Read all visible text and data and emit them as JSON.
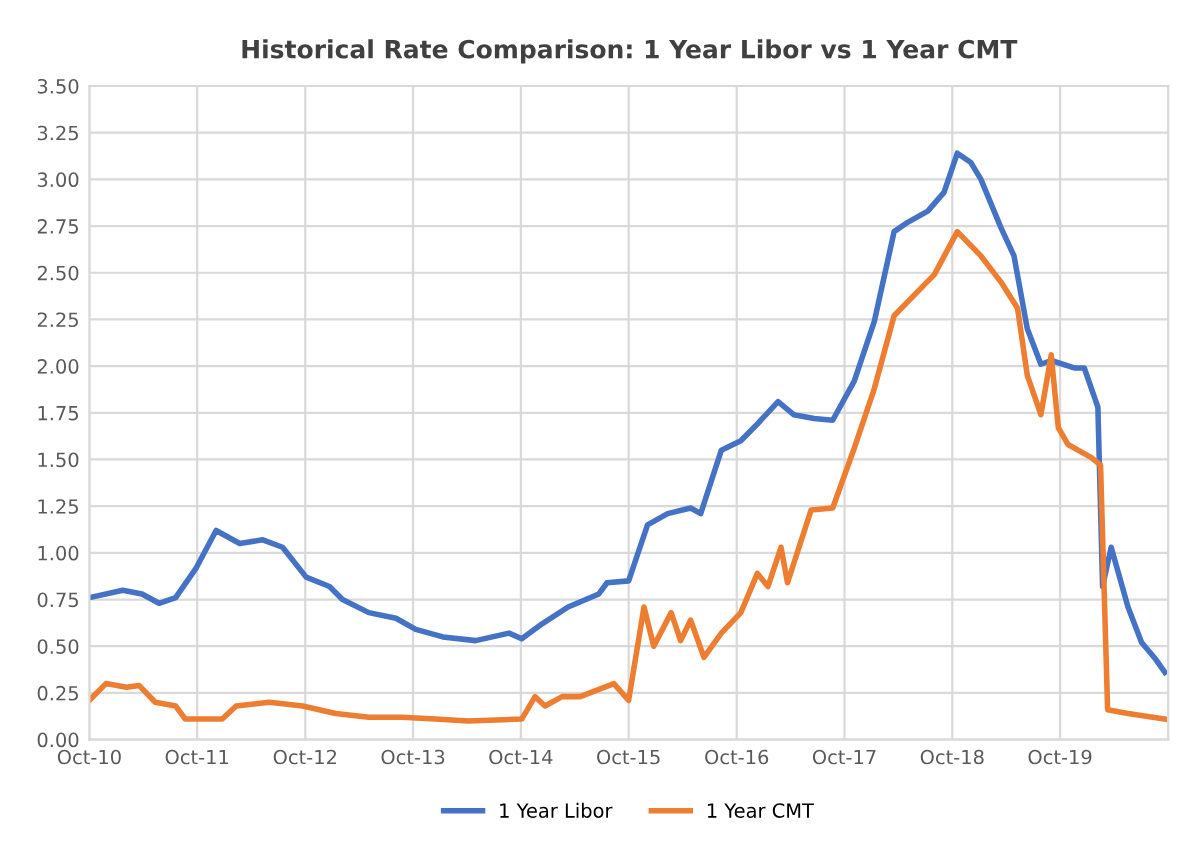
{
  "chart_data": {
    "type": "line",
    "title": "Historical Rate Comparison: 1 Year Libor vs 1 Year CMT",
    "xlim": [
      "2010-10-01",
      "2020-10-01"
    ],
    "xticks": [
      {
        "value": "2010-10-01",
        "label": "Oct-10"
      },
      {
        "value": "2011-10-01",
        "label": "Oct-11"
      },
      {
        "value": "2012-10-01",
        "label": "Oct-12"
      },
      {
        "value": "2013-10-01",
        "label": "Oct-13"
      },
      {
        "value": "2014-10-01",
        "label": "Oct-14"
      },
      {
        "value": "2015-10-01",
        "label": "Oct-15"
      },
      {
        "value": "2016-10-01",
        "label": "Oct-16"
      },
      {
        "value": "2017-10-01",
        "label": "Oct-17"
      },
      {
        "value": "2018-10-01",
        "label": "Oct-18"
      },
      {
        "value": "2019-10-01",
        "label": "Oct-19"
      }
    ],
    "ylim": [
      0,
      3.5
    ],
    "yticks": [
      {
        "value": 0,
        "label": "0.00"
      },
      {
        "value": 0.25,
        "label": "0.25"
      },
      {
        "value": 0.5,
        "label": "0.50"
      },
      {
        "value": 0.75,
        "label": "0.75"
      },
      {
        "value": 1,
        "label": "1.00"
      },
      {
        "value": 1.25,
        "label": "1.25"
      },
      {
        "value": 1.5,
        "label": "1.50"
      },
      {
        "value": 1.75,
        "label": "1.75"
      },
      {
        "value": 2,
        "label": "2.00"
      },
      {
        "value": 2.25,
        "label": "2.25"
      },
      {
        "value": 2.5,
        "label": "2.50"
      },
      {
        "value": 2.75,
        "label": "2.75"
      },
      {
        "value": 3,
        "label": "3.00"
      },
      {
        "value": 3.25,
        "label": "3.25"
      },
      {
        "value": 3.5,
        "label": "3.50"
      }
    ],
    "grid": true,
    "legend": "bottom",
    "marker": "none",
    "line_style": "solid",
    "series": [
      {
        "name": "1 Year Libor",
        "color": "#4472c4",
        "x": [
          "2010-10-01",
          "2011-01-22",
          "2011-03-28",
          "2011-05-25",
          "2011-07-20",
          "2011-09-28",
          "2011-12-04",
          "2012-02-22",
          "2012-05-10",
          "2012-07-16",
          "2012-10-04",
          "2012-12-22",
          "2013-02-04",
          "2013-05-04",
          "2013-08-04",
          "2013-10-10",
          "2014-01-10",
          "2014-05-01",
          "2014-08-22",
          "2014-10-04",
          "2014-12-12",
          "2015-03-10",
          "2015-06-22",
          "2015-07-20",
          "2015-10-01",
          "2015-12-04",
          "2016-02-10",
          "2016-04-28",
          "2016-06-01",
          "2016-08-10",
          "2016-10-15",
          "2016-12-10",
          "2017-02-18",
          "2017-04-12",
          "2017-06-20",
          "2017-08-22",
          "2017-11-03",
          "2018-01-10",
          "2018-03-18",
          "2018-05-03",
          "2018-07-10",
          "2018-09-03",
          "2018-10-18",
          "2018-12-03",
          "2019-01-06",
          "2019-03-15",
          "2019-04-28",
          "2019-06-12",
          "2019-07-28",
          "2019-09-01",
          "2019-11-18",
          "2019-12-22",
          "2020-02-06",
          "2020-02-22",
          "2020-03-22",
          "2020-05-18",
          "2020-07-03",
          "2020-08-15",
          "2020-09-20"
        ],
        "values": [
          0.76,
          0.8,
          0.78,
          0.73,
          0.76,
          0.92,
          1.12,
          1.05,
          1.07,
          1.03,
          0.87,
          0.82,
          0.75,
          0.68,
          0.65,
          0.59,
          0.55,
          0.53,
          0.57,
          0.54,
          0.62,
          0.71,
          0.78,
          0.84,
          0.85,
          1.15,
          1.21,
          1.24,
          1.21,
          1.55,
          1.6,
          1.69,
          1.81,
          1.74,
          1.72,
          1.71,
          1.92,
          2.24,
          2.72,
          2.77,
          2.83,
          2.93,
          3.14,
          3.09,
          3.0,
          2.74,
          2.59,
          2.2,
          2.01,
          2.03,
          1.99,
          1.99,
          1.78,
          0.82,
          1.03,
          0.71,
          0.52,
          0.44,
          0.36
        ]
      },
      {
        "name": "1 Year CMT",
        "color": "#ed7d31",
        "x": [
          "2010-10-01",
          "2010-11-26",
          "2011-02-04",
          "2011-03-18",
          "2011-05-12",
          "2011-07-20",
          "2011-08-22",
          "2011-12-25",
          "2012-02-10",
          "2012-06-01",
          "2012-09-22",
          "2013-01-12",
          "2013-05-04",
          "2013-08-25",
          "2013-12-16",
          "2014-04-06",
          "2014-10-04",
          "2014-11-18",
          "2014-12-22",
          "2015-02-18",
          "2015-04-20",
          "2015-08-12",
          "2015-10-01",
          "2015-11-22",
          "2015-12-25",
          "2016-02-22",
          "2016-03-25",
          "2016-04-28",
          "2016-06-12",
          "2016-08-10",
          "2016-10-15",
          "2016-12-10",
          "2017-01-15",
          "2017-02-28",
          "2017-03-22",
          "2017-06-10",
          "2017-08-22",
          "2017-11-03",
          "2018-01-10",
          "2018-03-18",
          "2018-05-25",
          "2018-08-01",
          "2018-10-18",
          "2019-01-06",
          "2019-03-15",
          "2019-05-10",
          "2019-06-12",
          "2019-07-28",
          "2019-09-01",
          "2019-09-25",
          "2019-10-28",
          "2020-01-15",
          "2020-02-15",
          "2020-03-10",
          "2020-05-18",
          "2020-09-20"
        ],
        "values": [
          0.21,
          0.3,
          0.28,
          0.29,
          0.2,
          0.18,
          0.11,
          0.11,
          0.18,
          0.2,
          0.18,
          0.14,
          0.12,
          0.12,
          0.11,
          0.1,
          0.11,
          0.23,
          0.18,
          0.23,
          0.23,
          0.3,
          0.21,
          0.71,
          0.5,
          0.68,
          0.53,
          0.64,
          0.44,
          0.57,
          0.68,
          0.89,
          0.82,
          1.03,
          0.84,
          1.23,
          1.24,
          1.56,
          1.88,
          2.27,
          2.38,
          2.49,
          2.72,
          2.59,
          2.45,
          2.31,
          1.95,
          1.74,
          2.06,
          1.67,
          1.58,
          1.51,
          1.47,
          0.16,
          0.14,
          0.11
        ]
      }
    ]
  }
}
